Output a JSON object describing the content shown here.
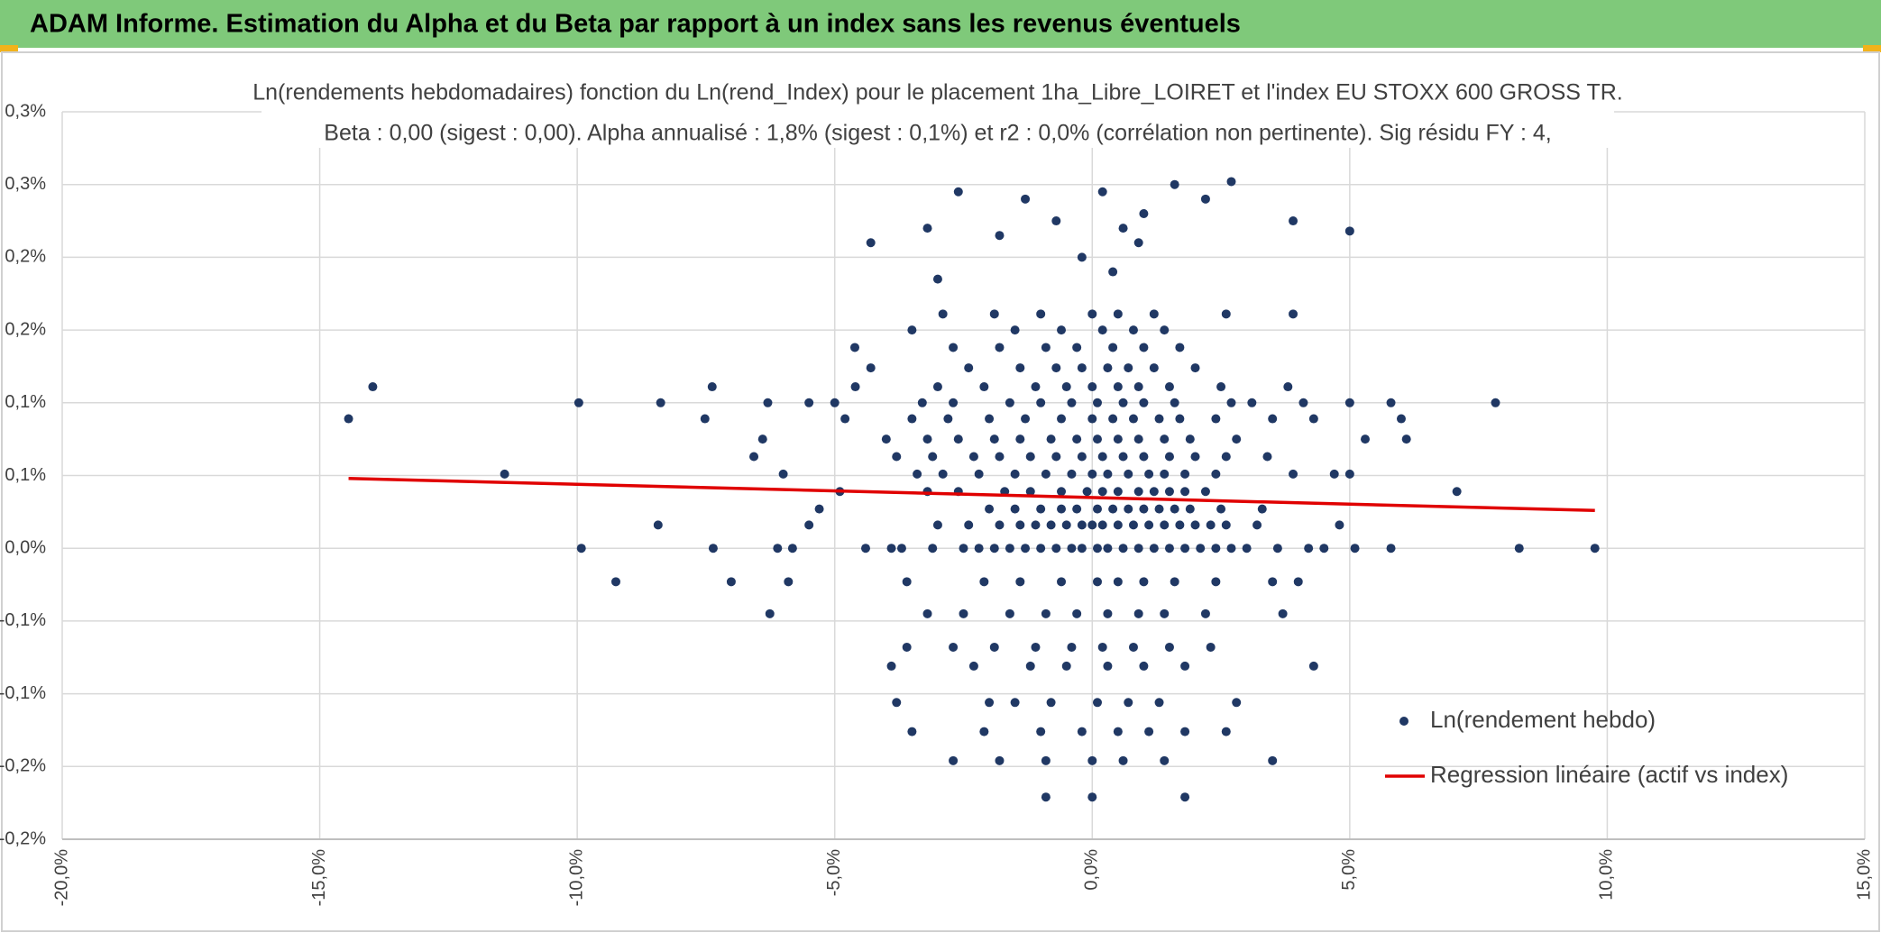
{
  "header": {
    "title": "ADAM Informe. Estimation du Alpha et du Beta par rapport à un index sans les revenus éventuels"
  },
  "chart_data": {
    "type": "scatter",
    "title": "Ln(rendements hebdomadaires) fonction du Ln(rend_Index) pour le placement 1ha_Libre_LOIRET et l'index EU STOXX 600 GROSS TR.",
    "subtitle": "Beta : 0,00 (sigest : 0,00). Alpha annualisé : 1,8% (sigest : 0,1%) et r2 : 0,0% (corrélation non pertinente). Sig résidu FY : 4,",
    "xlim": [
      -20,
      15
    ],
    "xticks": [
      {
        "value": -20,
        "label": "-20,0%"
      },
      {
        "value": -15,
        "label": "-15,0%"
      },
      {
        "value": -10,
        "label": "-10,0%"
      },
      {
        "value": -5,
        "label": "-5,0%"
      },
      {
        "value": 0,
        "label": "0,0%"
      },
      {
        "value": 5,
        "label": "5,0%"
      },
      {
        "value": 10,
        "label": "10,0%"
      },
      {
        "value": 15,
        "label": "15,0%"
      }
    ],
    "ylim": [
      -0.2,
      0.3
    ],
    "yticks": [
      {
        "value": -0.2,
        "label": "-0,2%"
      },
      {
        "value": -0.15,
        "label": "-0,2%"
      },
      {
        "value": -0.1,
        "label": "-0,1%"
      },
      {
        "value": -0.05,
        "label": "-0,1%"
      },
      {
        "value": 0,
        "label": "0,0%"
      },
      {
        "value": 0.05,
        "label": "0,1%"
      },
      {
        "value": 0.1,
        "label": "0,1%"
      },
      {
        "value": 0.15,
        "label": "0,2%"
      },
      {
        "value": 0.2,
        "label": "0,2%"
      },
      {
        "value": 0.25,
        "label": "0,3%"
      },
      {
        "value": 0.3,
        "label": "0,3%"
      }
    ],
    "grid": true,
    "legend": "bottom-right",
    "series": [
      {
        "name": "Ln(rendement hebdo)",
        "color": "#203864",
        "mode": "markers",
        "x": [
          -9.92,
          -7.36,
          -6.11,
          -5.82,
          -4.4,
          -3.9,
          -3.7,
          -3.1,
          -2.5,
          -2.2,
          -1.9,
          -1.6,
          -1.3,
          -1.0,
          -0.7,
          -0.4,
          -0.2,
          0.1,
          0.3,
          0.6,
          0.9,
          1.2,
          1.5,
          1.8,
          2.1,
          2.4,
          2.7,
          3.0,
          3.6,
          4.2,
          4.5,
          5.1,
          5.8,
          8.29,
          9.76,
          -8.43,
          -5.5,
          -3.0,
          -2.4,
          -1.8,
          -1.4,
          -1.1,
          -0.8,
          -0.5,
          -0.2,
          0.0,
          0.2,
          0.5,
          0.8,
          1.1,
          1.4,
          1.7,
          2.0,
          2.3,
          2.6,
          3.2,
          4.8,
          -5.3,
          -2.0,
          -1.5,
          -1.0,
          -0.6,
          -0.3,
          0.1,
          0.4,
          0.7,
          1.0,
          1.3,
          1.6,
          1.9,
          2.5,
          3.3,
          -4.9,
          -3.2,
          -2.6,
          -1.7,
          -1.2,
          -0.6,
          -0.1,
          0.2,
          0.5,
          0.9,
          1.2,
          1.5,
          1.8,
          2.2,
          7.08,
          -11.41,
          -6.0,
          -3.4,
          -2.9,
          -2.2,
          -1.5,
          -0.9,
          -0.4,
          0.0,
          0.3,
          0.7,
          1.1,
          1.4,
          1.8,
          2.4,
          3.9,
          4.7,
          5.0,
          -6.57,
          -3.8,
          -3.1,
          -2.3,
          -1.8,
          -1.2,
          -0.7,
          -0.2,
          0.2,
          0.6,
          1.0,
          1.5,
          2.0,
          2.6,
          3.4,
          -6.4,
          -4.0,
          -3.2,
          -2.6,
          -1.9,
          -1.4,
          -0.8,
          -0.3,
          0.1,
          0.5,
          0.9,
          1.4,
          1.9,
          2.8,
          5.3,
          6.1,
          -14.44,
          -7.52,
          -4.8,
          -3.5,
          -2.8,
          -2.0,
          -1.3,
          -0.6,
          0.0,
          0.4,
          0.8,
          1.3,
          1.7,
          2.4,
          3.5,
          4.3,
          6.0,
          -9.97,
          -8.38,
          -6.3,
          -5.5,
          -5.0,
          -3.3,
          -2.7,
          -1.6,
          -1.0,
          -0.4,
          0.1,
          0.6,
          1.0,
          1.6,
          2.7,
          3.1,
          4.1,
          5.0,
          5.8,
          7.83,
          -13.97,
          -7.38,
          -4.6,
          -3.0,
          -2.1,
          -1.1,
          -0.5,
          0.0,
          0.5,
          0.9,
          1.5,
          2.5,
          3.8,
          -4.3,
          -2.4,
          -1.4,
          -0.7,
          -0.2,
          0.3,
          0.7,
          1.2,
          2.0,
          -4.61,
          -2.7,
          -1.8,
          -0.9,
          -0.3,
          0.4,
          1.0,
          1.7,
          -3.5,
          -1.5,
          -0.6,
          0.2,
          0.8,
          1.4,
          -2.9,
          -1.9,
          -1.0,
          0.0,
          0.5,
          1.2,
          2.6,
          3.9,
          -4.3,
          -3.2,
          -2.6,
          -1.8,
          -1.3,
          -0.7,
          0.2,
          0.6,
          1.0,
          1.6,
          2.2,
          2.7,
          3.9,
          5.0,
          -3.0,
          -0.2,
          0.9,
          0.4,
          -9.25,
          -7.01,
          -5.9,
          -3.6,
          -2.1,
          -1.4,
          -0.6,
          0.1,
          0.5,
          1.0,
          1.6,
          2.4,
          3.5,
          4.0,
          -6.26,
          -3.2,
          -2.5,
          -1.6,
          -0.9,
          -0.3,
          0.3,
          0.9,
          1.4,
          2.2,
          3.7,
          -3.6,
          -2.7,
          -1.9,
          -1.1,
          -0.4,
          0.2,
          0.8,
          1.5,
          2.3,
          -3.9,
          -2.3,
          -1.2,
          -0.5,
          0.3,
          1.0,
          1.8,
          4.3,
          -3.8,
          -2.0,
          -1.5,
          -0.8,
          0.1,
          0.7,
          1.3,
          2.8,
          -3.5,
          -2.1,
          -1.0,
          -0.2,
          0.5,
          1.1,
          1.8,
          2.6,
          -2.7,
          -1.8,
          -0.9,
          0.0,
          0.6,
          1.4,
          3.5,
          -0.9,
          0.0,
          1.8
        ],
        "values": [
          0,
          0,
          0,
          0,
          0,
          0,
          0,
          0,
          0,
          0,
          0,
          0,
          0,
          0,
          0,
          0,
          0,
          0,
          0,
          0,
          0,
          0,
          0,
          0,
          0,
          0,
          0,
          0,
          0,
          0,
          0,
          0,
          0,
          0,
          0,
          0.016,
          0.016,
          0.016,
          0.016,
          0.016,
          0.016,
          0.016,
          0.016,
          0.016,
          0.016,
          0.016,
          0.016,
          0.016,
          0.016,
          0.016,
          0.016,
          0.016,
          0.016,
          0.016,
          0.016,
          0.016,
          0.016,
          0.027,
          0.027,
          0.027,
          0.027,
          0.027,
          0.027,
          0.027,
          0.027,
          0.027,
          0.027,
          0.027,
          0.027,
          0.027,
          0.027,
          0.027,
          0.039,
          0.039,
          0.039,
          0.039,
          0.039,
          0.039,
          0.039,
          0.039,
          0.039,
          0.039,
          0.039,
          0.039,
          0.039,
          0.039,
          0.039,
          0.051,
          0.051,
          0.051,
          0.051,
          0.051,
          0.051,
          0.051,
          0.051,
          0.051,
          0.051,
          0.051,
          0.051,
          0.051,
          0.051,
          0.051,
          0.051,
          0.051,
          0.051,
          0.063,
          0.063,
          0.063,
          0.063,
          0.063,
          0.063,
          0.063,
          0.063,
          0.063,
          0.063,
          0.063,
          0.063,
          0.063,
          0.063,
          0.063,
          0.075,
          0.075,
          0.075,
          0.075,
          0.075,
          0.075,
          0.075,
          0.075,
          0.075,
          0.075,
          0.075,
          0.075,
          0.075,
          0.075,
          0.075,
          0.075,
          0.089,
          0.089,
          0.089,
          0.089,
          0.089,
          0.089,
          0.089,
          0.089,
          0.089,
          0.089,
          0.089,
          0.089,
          0.089,
          0.089,
          0.089,
          0.089,
          0.089,
          0.1,
          0.1,
          0.1,
          0.1,
          0.1,
          0.1,
          0.1,
          0.1,
          0.1,
          0.1,
          0.1,
          0.1,
          0.1,
          0.1,
          0.1,
          0.1,
          0.1,
          0.1,
          0.1,
          0.1,
          0.111,
          0.111,
          0.111,
          0.111,
          0.111,
          0.111,
          0.111,
          0.111,
          0.111,
          0.111,
          0.111,
          0.111,
          0.111,
          0.124,
          0.124,
          0.124,
          0.124,
          0.124,
          0.124,
          0.124,
          0.124,
          0.124,
          0.138,
          0.138,
          0.138,
          0.138,
          0.138,
          0.138,
          0.138,
          0.138,
          0.15,
          0.15,
          0.15,
          0.15,
          0.15,
          0.15,
          0.161,
          0.161,
          0.161,
          0.161,
          0.161,
          0.161,
          0.161,
          0.161,
          0.21,
          0.22,
          0.245,
          0.215,
          0.24,
          0.225,
          0.245,
          0.22,
          0.23,
          0.25,
          0.24,
          0.252,
          0.225,
          0.218,
          0.185,
          0.2,
          0.21,
          0.19,
          -0.023,
          -0.023,
          -0.023,
          -0.023,
          -0.023,
          -0.023,
          -0.023,
          -0.023,
          -0.023,
          -0.023,
          -0.023,
          -0.023,
          -0.023,
          -0.023,
          -0.045,
          -0.045,
          -0.045,
          -0.045,
          -0.045,
          -0.045,
          -0.045,
          -0.045,
          -0.045,
          -0.045,
          -0.045,
          -0.068,
          -0.068,
          -0.068,
          -0.068,
          -0.068,
          -0.068,
          -0.068,
          -0.068,
          -0.068,
          -0.081,
          -0.081,
          -0.081,
          -0.081,
          -0.081,
          -0.081,
          -0.081,
          -0.081,
          -0.106,
          -0.106,
          -0.106,
          -0.106,
          -0.106,
          -0.106,
          -0.106,
          -0.106,
          -0.126,
          -0.126,
          -0.126,
          -0.126,
          -0.126,
          -0.126,
          -0.126,
          -0.126,
          -0.146,
          -0.146,
          -0.146,
          -0.146,
          -0.146,
          -0.146,
          -0.146,
          -0.171,
          -0.171,
          -0.171
        ]
      },
      {
        "name": "Regression linéaire (actif vs index)",
        "color": "#e00000",
        "mode": "line",
        "x": [
          -14.44,
          9.76
        ],
        "values": [
          0.048,
          0.026
        ]
      }
    ]
  }
}
